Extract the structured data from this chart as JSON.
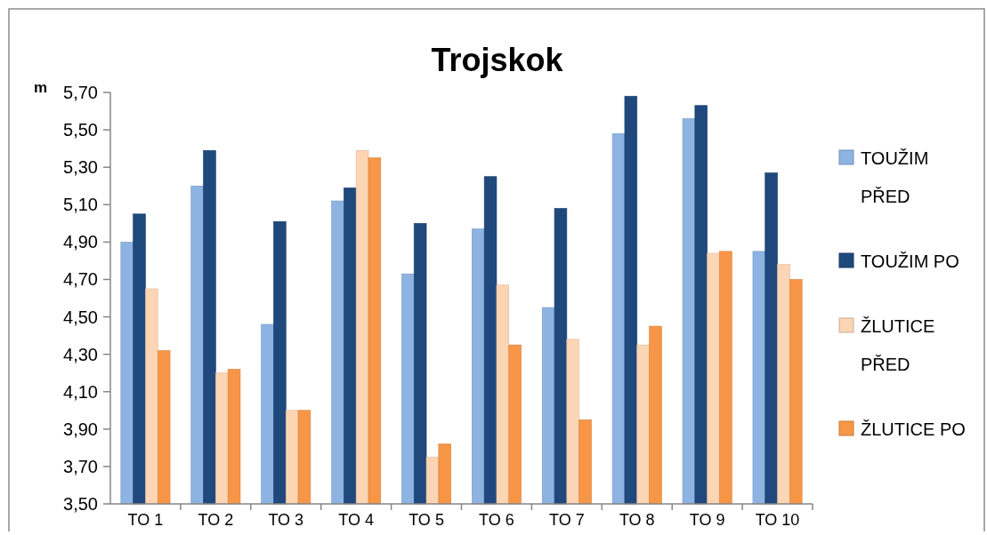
{
  "chart_data": {
    "type": "bar",
    "title": "Trojskok",
    "ylabel": "m",
    "categories": [
      "TO 1",
      "TO 2",
      "TO 3",
      "TO 4",
      "TO 5",
      "TO 6",
      "TO 7",
      "TO 8",
      "TO 9",
      "TO 10"
    ],
    "series": [
      {
        "name": "TOUŽIM PŘED",
        "color": "#8db3e2",
        "values": [
          4.9,
          5.2,
          4.46,
          5.12,
          4.73,
          4.97,
          4.55,
          5.48,
          5.56,
          4.85
        ]
      },
      {
        "name": "TOUŽIM PO",
        "color": "#1f497d",
        "values": [
          5.05,
          5.39,
          5.01,
          5.19,
          5.0,
          5.25,
          5.08,
          5.68,
          5.63,
          5.27
        ]
      },
      {
        "name": "ŽLUTICE PŘED",
        "color": "#fcd5b4",
        "values": [
          4.65,
          4.2,
          4.0,
          5.39,
          3.75,
          4.67,
          4.38,
          4.35,
          4.84,
          4.78
        ]
      },
      {
        "name": "ŽLUTICE PO",
        "color": "#f79646",
        "values": [
          4.32,
          4.22,
          4.0,
          5.35,
          3.82,
          4.35,
          3.95,
          4.45,
          4.85,
          4.7
        ]
      }
    ],
    "ylim": [
      3.5,
      5.7
    ],
    "yticks": [
      {
        "value": 3.5,
        "label": "3,50"
      },
      {
        "value": 3.7,
        "label": "3,70"
      },
      {
        "value": 3.9,
        "label": "3,90"
      },
      {
        "value": 4.1,
        "label": "4,10"
      },
      {
        "value": 4.3,
        "label": "4,30"
      },
      {
        "value": 4.5,
        "label": "4,50"
      },
      {
        "value": 4.7,
        "label": "4,70"
      },
      {
        "value": 4.9,
        "label": "4,90"
      },
      {
        "value": 5.1,
        "label": "5,10"
      },
      {
        "value": 5.3,
        "label": "5,30"
      },
      {
        "value": 5.5,
        "label": "5,50"
      },
      {
        "value": 5.7,
        "label": "5,70"
      }
    ],
    "grid": false,
    "legend": "right"
  }
}
